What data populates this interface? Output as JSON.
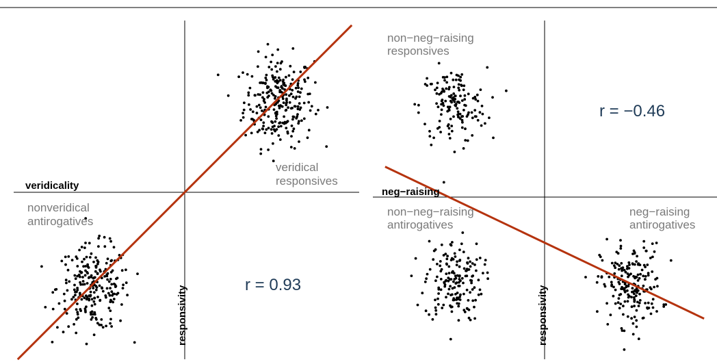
{
  "colors": {
    "fit_line": "#b5330e",
    "points": "#000000",
    "group_labels": "#7a7a7a",
    "correlation_text": "#1f3b57",
    "axes": "#000000"
  },
  "chart_data": [
    {
      "type": "scatter",
      "xlabel": "veridicality",
      "ylabel": "responsivity",
      "correlation_label": "r = 0.93",
      "groups": [
        {
          "label_line1": "veridical",
          "label_line2": "responsives",
          "center": [
            0.62,
            0.6
          ],
          "spread": [
            0.23,
            0.3
          ],
          "n": 260
        },
        {
          "label_line1": "nonveridical",
          "label_line2": "antirogatives",
          "center": [
            -0.6,
            -0.63
          ],
          "spread": [
            0.24,
            0.28
          ],
          "n": 240
        }
      ],
      "fit_line": {
        "x": [
          -1.1,
          1.1
        ],
        "y": [
          -1.1,
          1.1
        ]
      },
      "xlim": [
        -1.15,
        1.15
      ],
      "ylim": [
        -1.15,
        1.15
      ]
    },
    {
      "type": "scatter",
      "xlabel": "neg−raising",
      "ylabel": "responsivity",
      "correlation_label": "r = −0.46",
      "groups": [
        {
          "label_line1": "non−neg−raising",
          "label_line2": "responsives",
          "center": [
            -0.6,
            0.6
          ],
          "spread": [
            0.22,
            0.25
          ],
          "n": 150
        },
        {
          "label_line1": "non−neg−raising",
          "label_line2": "antirogatives",
          "center": [
            -0.6,
            -0.55
          ],
          "spread": [
            0.19,
            0.27
          ],
          "n": 170
        },
        {
          "label_line1": "neg−raising",
          "label_line2": "antirogatives",
          "center": [
            0.57,
            -0.58
          ],
          "spread": [
            0.2,
            0.27
          ],
          "n": 200
        }
      ],
      "fit_line": {
        "x": [
          -1.05,
          1.05
        ],
        "y": [
          0.2,
          -0.8
        ]
      },
      "xlim": [
        -1.15,
        1.15
      ],
      "ylim": [
        -1.15,
        1.15
      ]
    }
  ]
}
